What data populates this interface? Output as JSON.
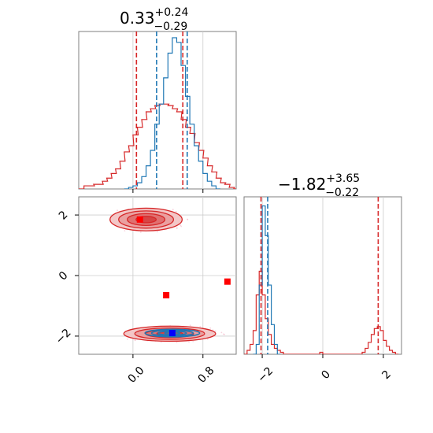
{
  "chart_data": [
    {
      "type": "histogram",
      "panel": "marginal-param-1",
      "title": {
        "median": "0.33",
        "plus": "+0.24",
        "minus": "−0.29"
      },
      "xlim": [
        -0.62,
        1.18
      ],
      "series": [
        {
          "name": "",
          "color": "#d62728",
          "bins": [
            [
              -0.62,
              0.0
            ],
            [
              -0.56,
              0.02
            ],
            [
              -0.5,
              0.02
            ],
            [
              -0.45,
              0.03
            ],
            [
              -0.4,
              0.03
            ],
            [
              -0.35,
              0.05
            ],
            [
              -0.3,
              0.07
            ],
            [
              -0.25,
              0.1
            ],
            [
              -0.2,
              0.13
            ],
            [
              -0.15,
              0.18
            ],
            [
              -0.1,
              0.24
            ],
            [
              -0.05,
              0.28
            ],
            [
              0.0,
              0.35
            ],
            [
              0.05,
              0.4
            ],
            [
              0.1,
              0.45
            ],
            [
              0.15,
              0.5
            ],
            [
              0.2,
              0.52
            ],
            [
              0.25,
              0.54
            ],
            [
              0.3,
              0.55
            ],
            [
              0.35,
              0.55
            ],
            [
              0.4,
              0.54
            ],
            [
              0.45,
              0.52
            ],
            [
              0.5,
              0.5
            ],
            [
              0.55,
              0.45
            ],
            [
              0.6,
              0.4
            ],
            [
              0.65,
              0.36
            ],
            [
              0.7,
              0.3
            ],
            [
              0.75,
              0.25
            ],
            [
              0.8,
              0.2
            ],
            [
              0.85,
              0.15
            ],
            [
              0.9,
              0.11
            ],
            [
              0.95,
              0.07
            ],
            [
              1.0,
              0.04
            ],
            [
              1.05,
              0.03
            ],
            [
              1.1,
              0.01
            ],
            [
              1.15,
              0.0
            ]
          ]
        },
        {
          "name": "",
          "color": "#1f77b4",
          "bins": [
            [
              -0.1,
              0.0
            ],
            [
              -0.05,
              0.01
            ],
            [
              0.0,
              0.02
            ],
            [
              0.05,
              0.04
            ],
            [
              0.1,
              0.08
            ],
            [
              0.15,
              0.15
            ],
            [
              0.2,
              0.25
            ],
            [
              0.25,
              0.42
            ],
            [
              0.3,
              0.55
            ],
            [
              0.35,
              0.72
            ],
            [
              0.4,
              0.88
            ],
            [
              0.45,
              0.98
            ],
            [
              0.5,
              0.95
            ],
            [
              0.55,
              0.8
            ],
            [
              0.6,
              0.6
            ],
            [
              0.65,
              0.42
            ],
            [
              0.7,
              0.28
            ],
            [
              0.75,
              0.18
            ],
            [
              0.8,
              0.1
            ],
            [
              0.85,
              0.05
            ],
            [
              0.9,
              0.02
            ],
            [
              0.95,
              0.0
            ]
          ]
        }
      ],
      "quantile_lines": {
        "red": [
          0.04,
          0.57
        ],
        "blue": [
          0.27,
          0.62
        ]
      }
    },
    {
      "type": "histogram",
      "panel": "marginal-param-2",
      "title": {
        "median": "−1.82",
        "plus": "+3.65",
        "minus": "−0.22"
      },
      "xlim": [
        -2.6,
        2.6
      ],
      "series": [
        {
          "name": "",
          "color": "#d62728",
          "bins": [
            [
              -2.6,
              0.0
            ],
            [
              -2.5,
              0.02
            ],
            [
              -2.4,
              0.05
            ],
            [
              -2.3,
              0.12
            ],
            [
              -2.2,
              0.3
            ],
            [
              -2.1,
              0.42
            ],
            [
              -2.0,
              0.3
            ],
            [
              -1.9,
              0.18
            ],
            [
              -1.8,
              0.1
            ],
            [
              -1.7,
              0.05
            ],
            [
              -1.6,
              0.03
            ],
            [
              -1.5,
              0.02
            ],
            [
              -1.4,
              0.01
            ],
            [
              -1.3,
              0.0
            ],
            [
              -0.2,
              0.0
            ],
            [
              -0.1,
              0.01
            ],
            [
              0.0,
              0.0
            ],
            [
              1.2,
              0.0
            ],
            [
              1.3,
              0.01
            ],
            [
              1.4,
              0.03
            ],
            [
              1.5,
              0.06
            ],
            [
              1.6,
              0.1
            ],
            [
              1.7,
              0.13
            ],
            [
              1.8,
              0.14
            ],
            [
              1.9,
              0.12
            ],
            [
              2.0,
              0.07
            ],
            [
              2.1,
              0.04
            ],
            [
              2.2,
              0.02
            ],
            [
              2.3,
              0.01
            ],
            [
              2.4,
              0.0
            ]
          ]
        },
        {
          "name": "",
          "color": "#1f77b4",
          "bins": [
            [
              -2.3,
              0.0
            ],
            [
              -2.2,
              0.05
            ],
            [
              -2.1,
              0.35
            ],
            [
              -2.0,
              0.75
            ],
            [
              -1.9,
              0.6
            ],
            [
              -1.8,
              0.35
            ],
            [
              -1.7,
              0.15
            ],
            [
              -1.6,
              0.05
            ],
            [
              -1.5,
              0.0
            ]
          ]
        }
      ],
      "quantile_lines": {
        "red": [
          -2.04,
          1.83
        ],
        "blue": [
          -1.82
        ]
      }
    },
    {
      "type": "contour-scatter",
      "panel": "joint",
      "xlim": [
        -0.62,
        1.18
      ],
      "ylim": [
        -2.6,
        2.6
      ],
      "red_modes": [
        {
          "x": 0.15,
          "y": 1.85,
          "sx": 0.33,
          "sy": 0.3
        },
        {
          "x": 0.42,
          "y": -1.92,
          "sx": 0.42,
          "sy": 0.2
        }
      ],
      "blue_mode": {
        "x": 0.45,
        "y": -1.9,
        "sx": 0.25,
        "sy": 0.1
      },
      "red_markers": [
        {
          "x": 0.08,
          "y": 1.85
        },
        {
          "x": 0.38,
          "y": -0.65
        },
        {
          "x": 1.08,
          "y": -0.2
        }
      ],
      "blue_marker": {
        "x": 0.45,
        "y": -1.9
      }
    }
  ],
  "axes": {
    "x1_ticks": [
      "0.0",
      "0.8"
    ],
    "x1_tick_values": [
      0.0,
      0.8
    ],
    "y2_ticks": [
      "2",
      "0",
      "−2"
    ],
    "y2_tick_values": [
      2,
      0,
      -2
    ],
    "x2_ticks": [
      "−2",
      "0",
      "2"
    ],
    "x2_tick_values": [
      -2,
      0,
      2
    ]
  },
  "colors": {
    "red": "#d62728",
    "blue": "#1f77b4",
    "marker_red": "#ff0000",
    "marker_blue": "#0000ff",
    "grid": "#cccccc"
  }
}
